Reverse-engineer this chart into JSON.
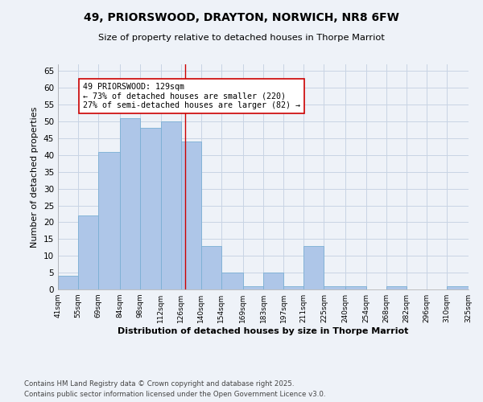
{
  "title1": "49, PRIORSWOOD, DRAYTON, NORWICH, NR8 6FW",
  "title2": "Size of property relative to detached houses in Thorpe Marriot",
  "xlabel": "Distribution of detached houses by size in Thorpe Marriot",
  "ylabel": "Number of detached properties",
  "bin_edges": [
    41,
    55,
    69,
    84,
    98,
    112,
    126,
    140,
    154,
    169,
    183,
    197,
    211,
    225,
    240,
    254,
    268,
    282,
    296,
    310,
    325
  ],
  "bar_heights": [
    4,
    22,
    41,
    51,
    48,
    50,
    44,
    13,
    5,
    1,
    5,
    1,
    13,
    1,
    1,
    0,
    1,
    0,
    0,
    1
  ],
  "bar_color": "#aec6e8",
  "bar_edgecolor": "#7aafd4",
  "vline_x": 129,
  "vline_color": "#cc0000",
  "annotation_text": "49 PRIORSWOOD: 129sqm\n← 73% of detached houses are smaller (220)\n27% of semi-detached houses are larger (82) →",
  "annotation_box_color": "#ffffff",
  "annotation_box_edgecolor": "#cc0000",
  "ylim": [
    0,
    67
  ],
  "yticks": [
    0,
    5,
    10,
    15,
    20,
    25,
    30,
    35,
    40,
    45,
    50,
    55,
    60,
    65
  ],
  "footer1": "Contains HM Land Registry data © Crown copyright and database right 2025.",
  "footer2": "Contains public sector information licensed under the Open Government Licence v3.0.",
  "background_color": "#eef2f8",
  "grid_color": "#c8d4e4"
}
